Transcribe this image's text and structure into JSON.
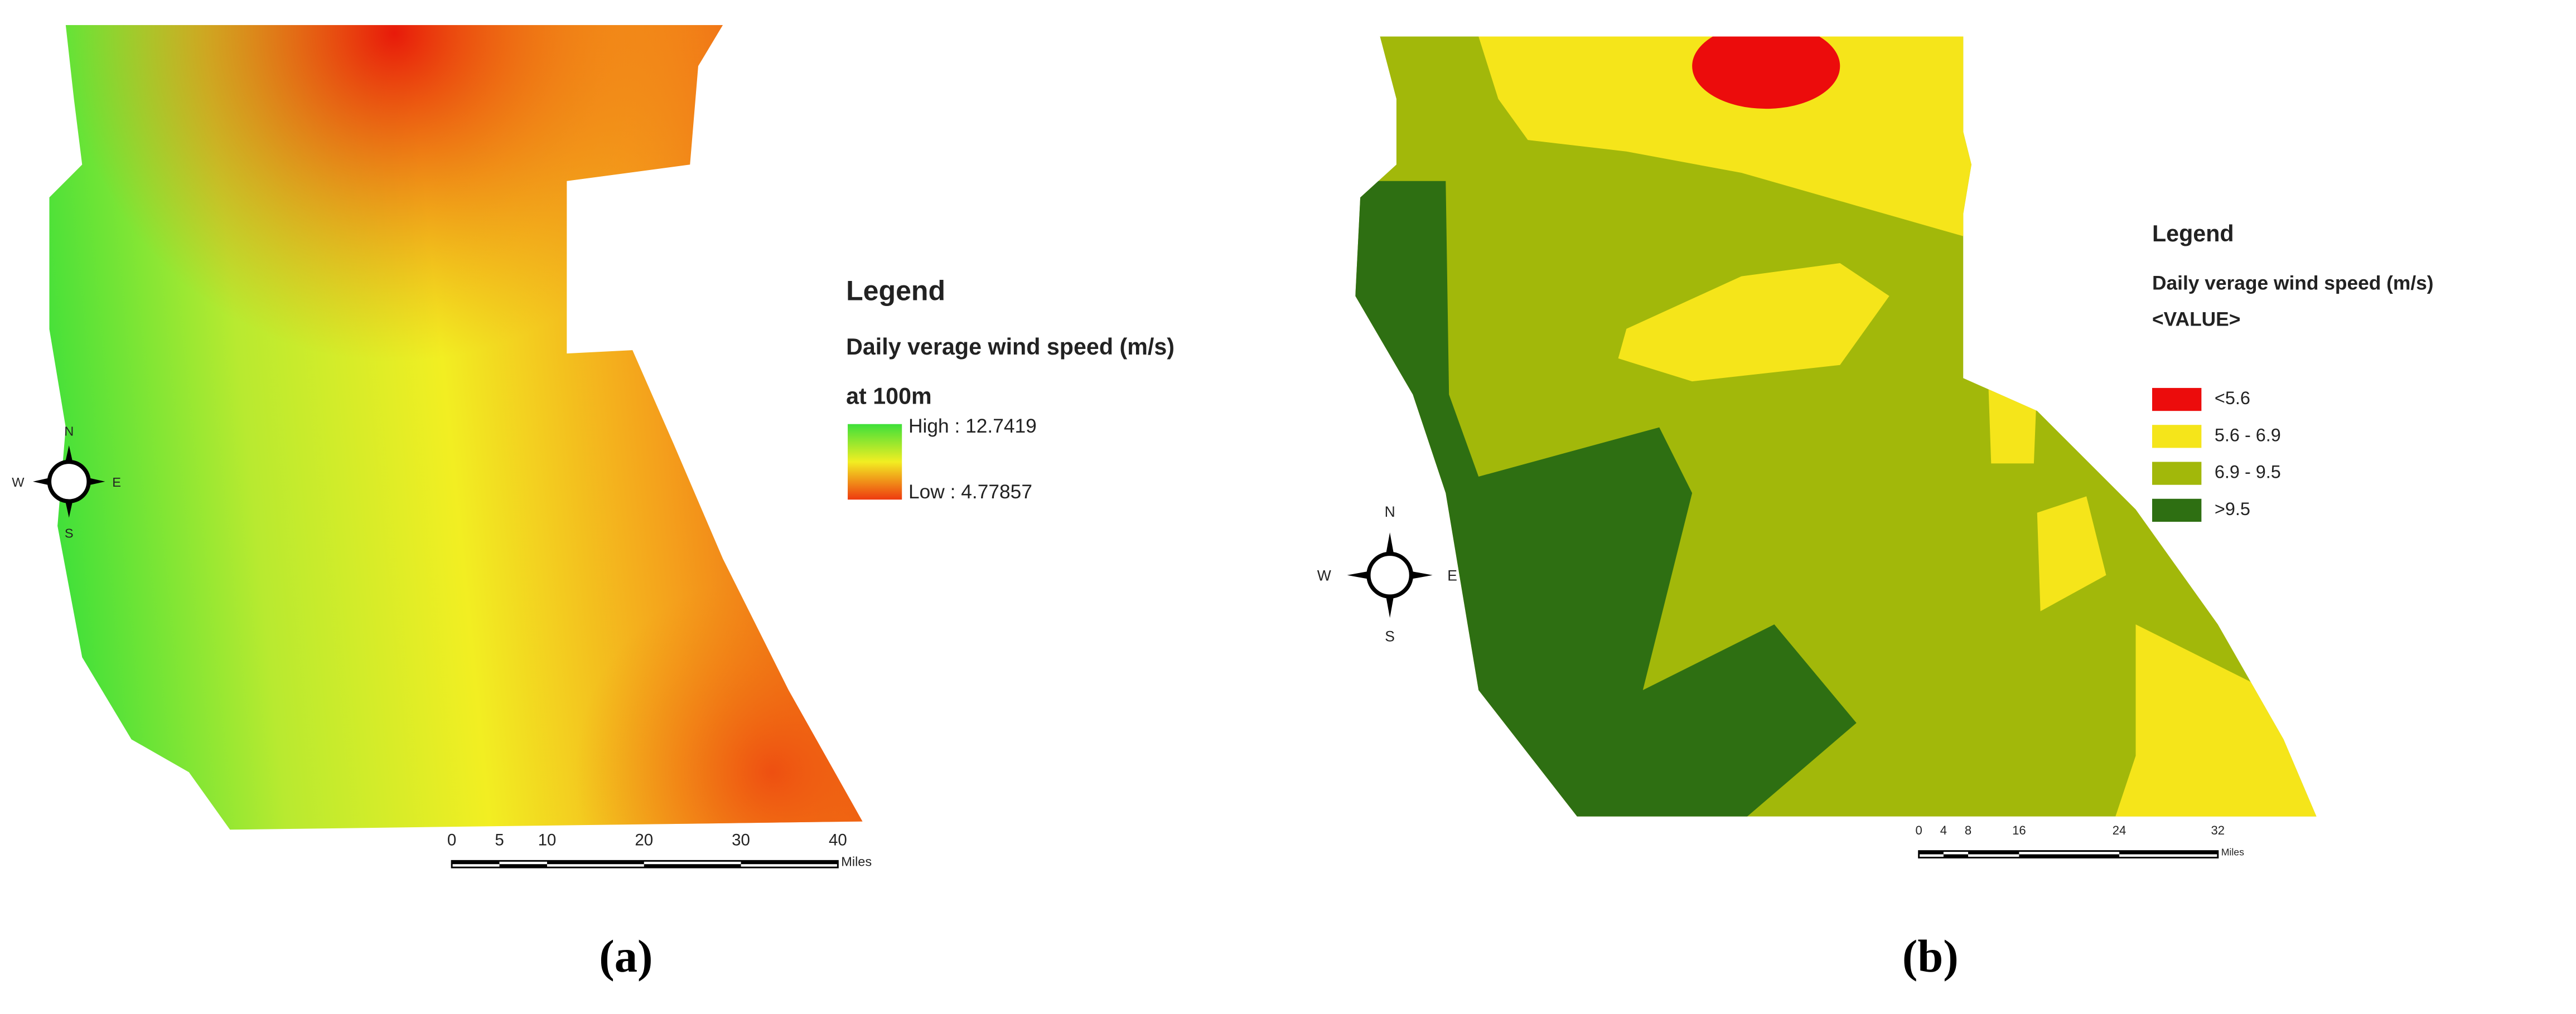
{
  "panels": [
    {
      "label": "(a)",
      "legend": {
        "title": "Legend",
        "subtitle": "Daily verage wind speed (m/s)",
        "subtitle2": "at 100m",
        "high": "High : 12.7419",
        "low": "Low : 4.77857"
      },
      "compass": {
        "n": "N",
        "e": "E",
        "s": "S",
        "w": "W"
      },
      "scale_bar": {
        "ticks": [
          "0",
          "5",
          "10",
          "20",
          "30",
          "40"
        ],
        "unit": "Miles"
      }
    },
    {
      "label": "(b)",
      "legend": {
        "title": "Legend",
        "subtitle": "Daily verage wind speed (m/s)",
        "field": "<VALUE>",
        "classes": [
          {
            "label": "<5.6",
            "color": "#ec0c0c"
          },
          {
            "label": "5.6 - 6.9",
            "color": "#f5e51a"
          },
          {
            "label": "6.9 - 9.5",
            "color": "#a2b80a"
          },
          {
            "label": ">9.5",
            "color": "#2e6f12"
          }
        ]
      },
      "compass": {
        "n": "N",
        "e": "E",
        "s": "S",
        "w": "W"
      },
      "scale_bar": {
        "ticks": [
          "0",
          "4",
          "8",
          "16",
          "24",
          "32"
        ],
        "unit": "Miles"
      }
    }
  ]
}
